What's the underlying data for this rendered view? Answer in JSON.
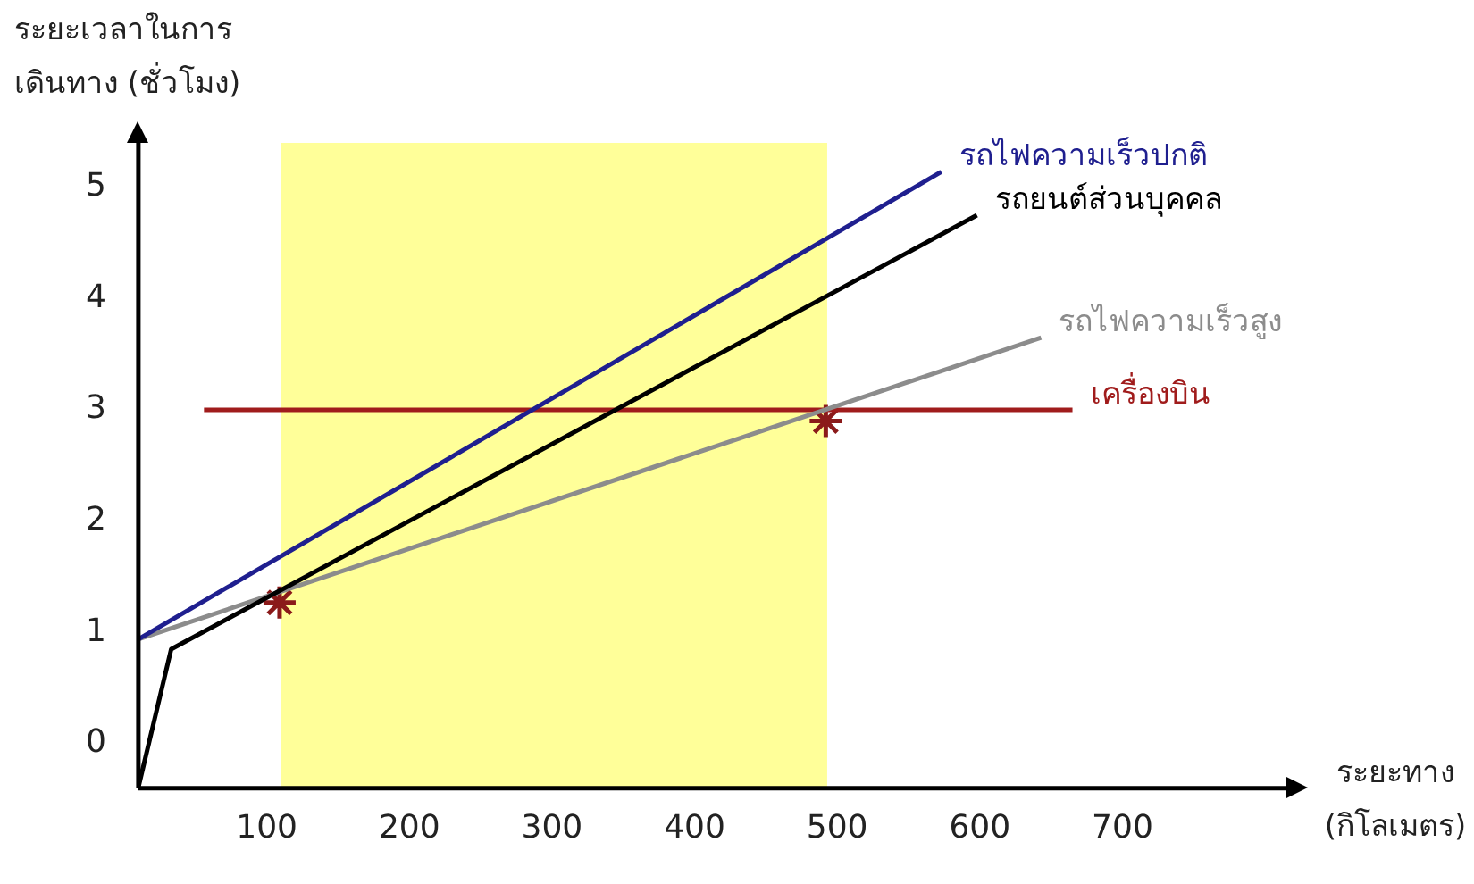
{
  "chart_data": {
    "type": "line",
    "xlabel": "ระยะทาง (กิโลเมตร)",
    "ylabel": "ระยะเวลาในการเดินทาง (ชั่วโมง)",
    "xlim": [
      10,
      815
    ],
    "xticks": [
      100,
      200,
      300,
      400,
      500,
      600,
      700
    ],
    "ylim": [
      -0.4,
      5.4
    ],
    "yticks": [
      0,
      1,
      2,
      3,
      4,
      5
    ],
    "grid": false,
    "legend": false,
    "marker": "none",
    "series": [
      {
        "name": "รถไฟความเร็วปกติ",
        "color": "#1f1f8f",
        "x": [
          10,
          573
        ],
        "values": [
          0.94,
          5.14
        ]
      },
      {
        "name": "รถยนต์ส่วนบุคคล",
        "color": "#000000",
        "x": [
          10,
          33,
          598
        ],
        "values": [
          -0.39,
          0.85,
          4.75
        ]
      },
      {
        "name": "รถไฟความเร็วสูง",
        "color": "#8c8c8c",
        "x": [
          10,
          643
        ],
        "values": [
          0.94,
          3.65
        ]
      },
      {
        "name": "เครื่องบิน",
        "color": "#a01c1c",
        "x": [
          56,
          665
        ],
        "values": [
          3,
          3
        ]
      },
      {
        "type": "scatter",
        "marker": "cross",
        "color": "#8b1a1a",
        "x": [
          109,
          492
        ],
        "values": [
          1.27,
          2.9
        ]
      }
    ],
    "bands": [
      {
        "axis": "x",
        "from": 110,
        "to": 493,
        "color": "#ffff99"
      }
    ]
  }
}
